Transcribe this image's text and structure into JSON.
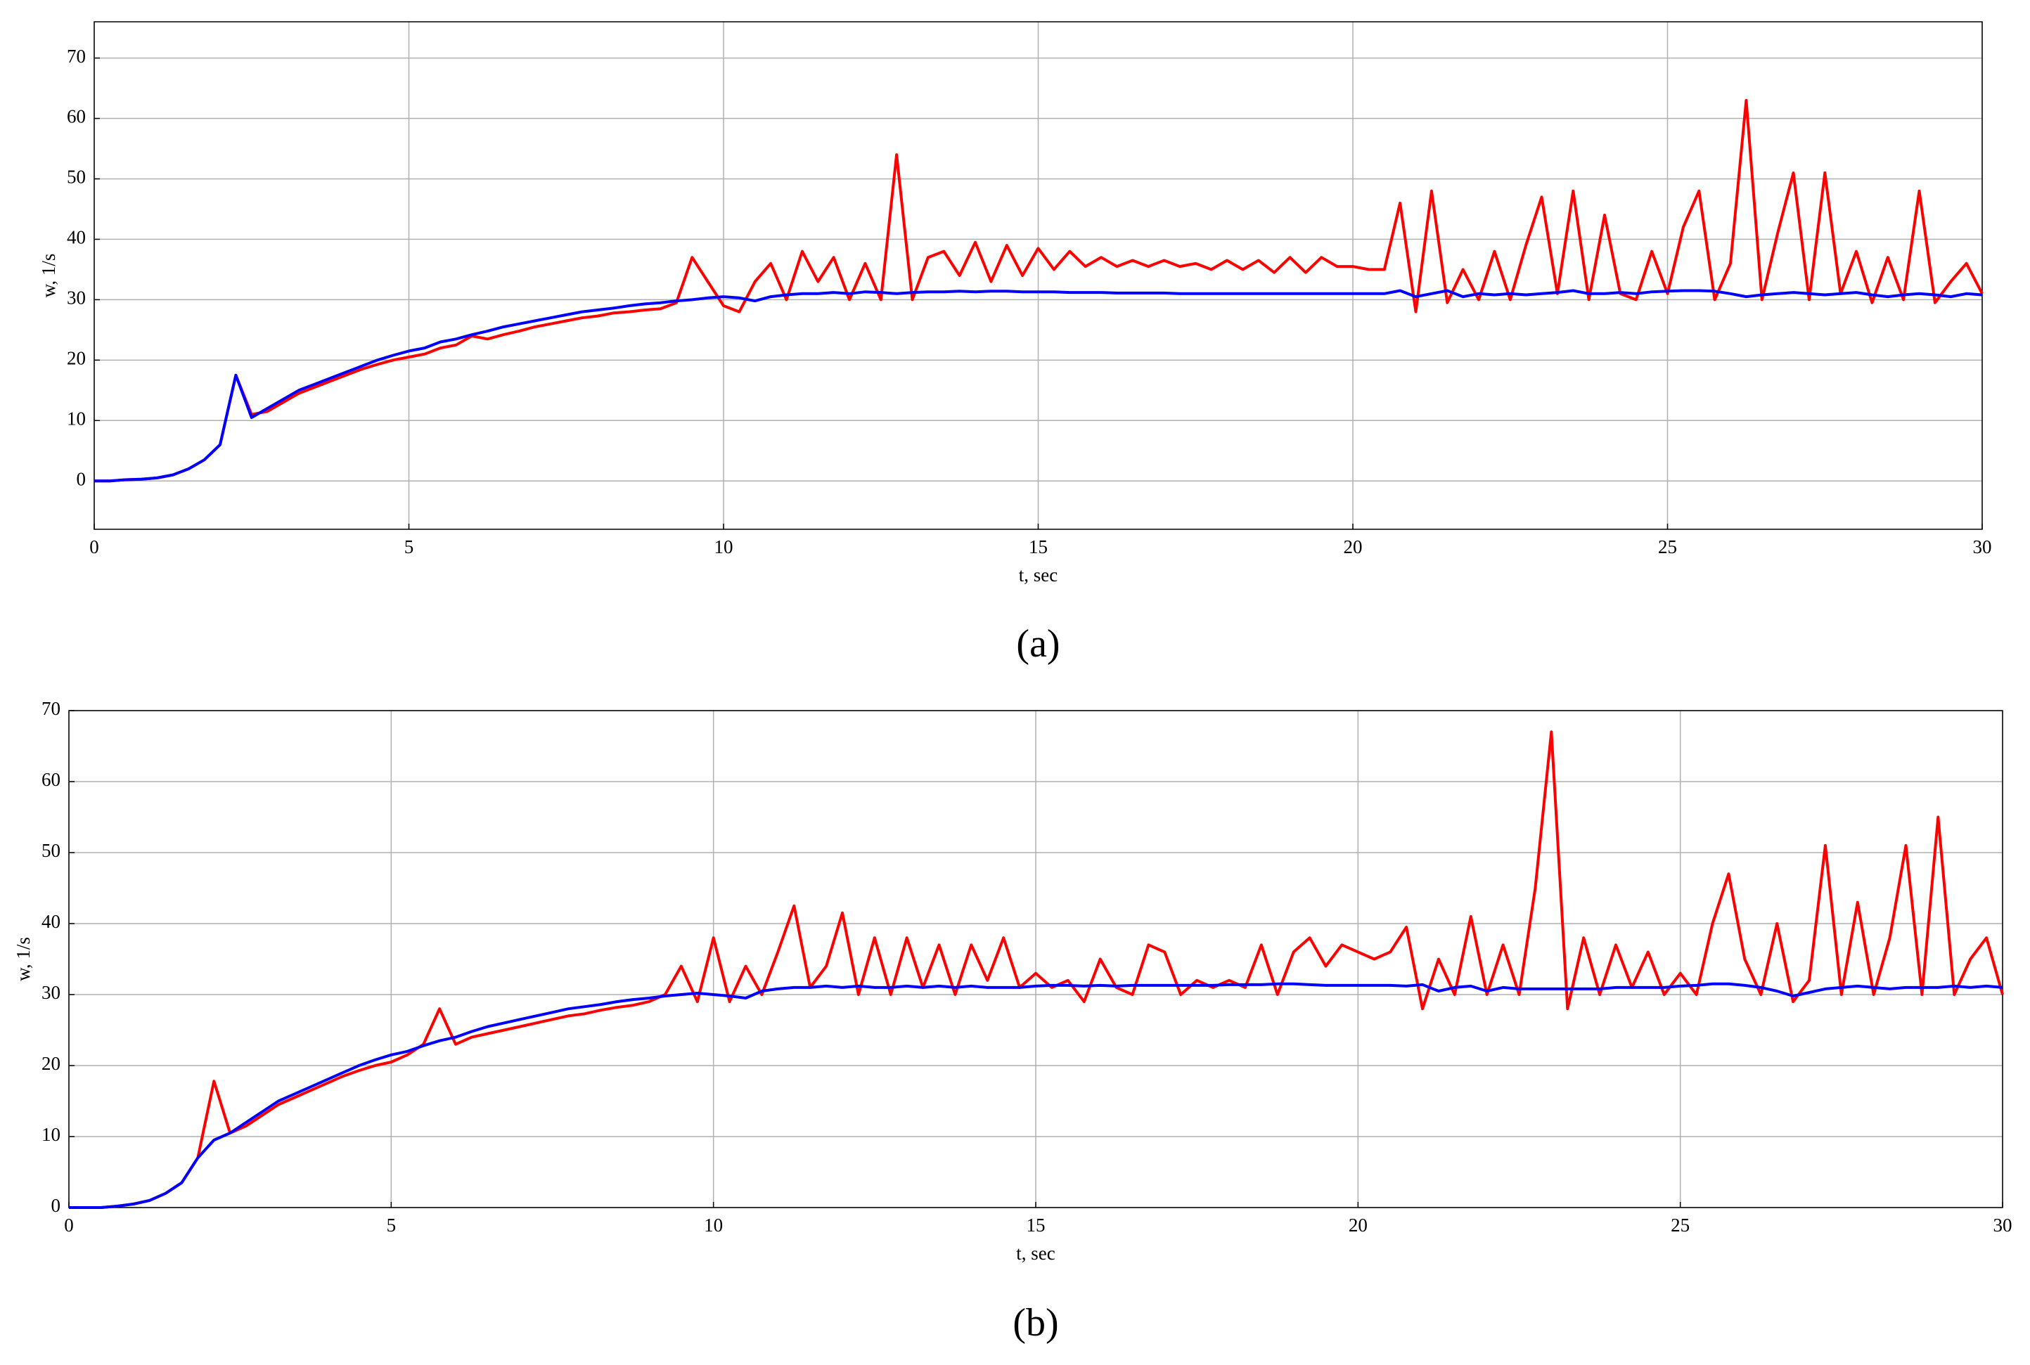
{
  "chart_data": [
    {
      "type": "line",
      "caption": "(a)",
      "xlabel": "t, sec",
      "ylabel": "w, 1/s",
      "xlim": [
        0,
        30
      ],
      "xticks": [
        0,
        5,
        10,
        15,
        20,
        25,
        30
      ],
      "ylim": [
        -8,
        76
      ],
      "yticks": [
        0,
        10,
        20,
        30,
        40,
        50,
        60,
        70
      ],
      "grid": true,
      "x": [
        0,
        0.25,
        0.5,
        0.75,
        1,
        1.25,
        1.5,
        1.75,
        2,
        2.25,
        2.5,
        2.75,
        3,
        3.25,
        3.5,
        3.75,
        4,
        4.25,
        4.5,
        4.75,
        5,
        5.25,
        5.5,
        5.75,
        6,
        6.25,
        6.5,
        6.75,
        7,
        7.25,
        7.5,
        7.75,
        8,
        8.25,
        8.5,
        8.75,
        9,
        9.25,
        9.5,
        9.75,
        10,
        10.25,
        10.5,
        10.75,
        11,
        11.25,
        11.5,
        11.75,
        12,
        12.25,
        12.5,
        12.75,
        13,
        13.25,
        13.5,
        13.75,
        14,
        14.25,
        14.5,
        14.75,
        15,
        15.25,
        15.5,
        15.75,
        16,
        16.25,
        16.5,
        16.75,
        17,
        17.25,
        17.5,
        17.75,
        18,
        18.25,
        18.5,
        18.75,
        19,
        19.25,
        19.5,
        19.75,
        20,
        20.25,
        20.5,
        20.75,
        21,
        21.25,
        21.5,
        21.75,
        22,
        22.25,
        22.5,
        22.75,
        23,
        23.25,
        23.5,
        23.75,
        24,
        24.25,
        24.5,
        24.75,
        25,
        25.25,
        25.5,
        25.75,
        26,
        26.25,
        26.5,
        26.75,
        27,
        27.25,
        27.5,
        27.75,
        28,
        28.25,
        28.5,
        28.75,
        29,
        29.25,
        29.5,
        29.75,
        30
      ],
      "series": [
        {
          "color": "#ff0000",
          "values": [
            0,
            0,
            0.2,
            0.3,
            0.5,
            1,
            2,
            3.5,
            6,
            17.5,
            11,
            11.5,
            13,
            14.5,
            15.5,
            16.5,
            17.5,
            18.5,
            19.3,
            20,
            20.5,
            21,
            22,
            22.5,
            24,
            23.5,
            24.2,
            24.8,
            25.5,
            26,
            26.5,
            27,
            27.3,
            27.8,
            28,
            28.3,
            28.5,
            29.5,
            37,
            33,
            29,
            28,
            33,
            36,
            30,
            38,
            33,
            37,
            30,
            36,
            30,
            54,
            30,
            37,
            38,
            34,
            39.5,
            33,
            39,
            34,
            38.5,
            35,
            38,
            35.5,
            37,
            35.5,
            36.5,
            35.5,
            36.5,
            35.5,
            36,
            35,
            36.5,
            35,
            36.5,
            34.5,
            37,
            34.5,
            37,
            35.5,
            35.5,
            35,
            35,
            46,
            28,
            48,
            29.5,
            35,
            30,
            38,
            30,
            39,
            47,
            31,
            48,
            30,
            44,
            31,
            30,
            38,
            31,
            42,
            48,
            30,
            36,
            63,
            30,
            41,
            51,
            30,
            51,
            31,
            38,
            29.5,
            37,
            30,
            48,
            29.5,
            33,
            36,
            31
          ]
        },
        {
          "color": "#0000ff",
          "values": [
            0,
            0,
            0.2,
            0.3,
            0.5,
            1,
            2,
            3.5,
            6,
            17.5,
            10.5,
            12,
            13.5,
            15,
            16,
            17,
            18,
            19,
            20,
            20.8,
            21.5,
            22,
            23,
            23.5,
            24.2,
            24.8,
            25.5,
            26,
            26.5,
            27,
            27.5,
            28,
            28.3,
            28.6,
            29,
            29.3,
            29.5,
            29.8,
            30,
            30.3,
            30.5,
            30.3,
            29.8,
            30.5,
            30.8,
            31,
            31,
            31.2,
            31,
            31.3,
            31.2,
            31,
            31.2,
            31.3,
            31.3,
            31.4,
            31.3,
            31.4,
            31.4,
            31.3,
            31.3,
            31.3,
            31.2,
            31.2,
            31.2,
            31.1,
            31.1,
            31.1,
            31.1,
            31,
            31,
            31,
            31,
            31,
            31,
            31,
            31,
            31,
            31,
            31,
            31,
            31,
            31,
            31.5,
            30.5,
            31,
            31.5,
            30.5,
            31,
            30.8,
            31,
            30.8,
            31,
            31.2,
            31.5,
            31,
            31,
            31.2,
            31,
            31.3,
            31.4,
            31.5,
            31.5,
            31.4,
            31,
            30.5,
            30.8,
            31,
            31.2,
            31,
            30.8,
            31,
            31.2,
            30.8,
            30.5,
            30.8,
            31,
            30.8,
            30.5,
            31,
            30.8
          ]
        }
      ]
    },
    {
      "type": "line",
      "caption": "(b)",
      "xlabel": "t, sec",
      "ylabel": "w, 1/s",
      "xlim": [
        0,
        30
      ],
      "xticks": [
        0,
        5,
        10,
        15,
        20,
        25,
        30
      ],
      "ylim": [
        0,
        70
      ],
      "yticks": [
        0,
        10,
        20,
        30,
        40,
        50,
        60,
        70
      ],
      "grid": true,
      "x": [
        0,
        0.25,
        0.5,
        0.75,
        1,
        1.25,
        1.5,
        1.75,
        2,
        2.25,
        2.5,
        2.75,
        3,
        3.25,
        3.5,
        3.75,
        4,
        4.25,
        4.5,
        4.75,
        5,
        5.25,
        5.5,
        5.75,
        6,
        6.25,
        6.5,
        6.75,
        7,
        7.25,
        7.5,
        7.75,
        8,
        8.25,
        8.5,
        8.75,
        9,
        9.25,
        9.5,
        9.75,
        10,
        10.25,
        10.5,
        10.75,
        11,
        11.25,
        11.5,
        11.75,
        12,
        12.25,
        12.5,
        12.75,
        13,
        13.25,
        13.5,
        13.75,
        14,
        14.25,
        14.5,
        14.75,
        15,
        15.25,
        15.5,
        15.75,
        16,
        16.25,
        16.5,
        16.75,
        17,
        17.25,
        17.5,
        17.75,
        18,
        18.25,
        18.5,
        18.75,
        19,
        19.25,
        19.5,
        19.75,
        20,
        20.25,
        20.5,
        20.75,
        21,
        21.25,
        21.5,
        21.75,
        22,
        22.25,
        22.5,
        22.75,
        23,
        23.25,
        23.5,
        23.75,
        24,
        24.25,
        24.5,
        24.75,
        25,
        25.25,
        25.5,
        25.75,
        26,
        26.25,
        26.5,
        26.75,
        27,
        27.25,
        27.5,
        27.75,
        28,
        28.25,
        28.5,
        28.75,
        29,
        29.25,
        29.5,
        29.75,
        30
      ],
      "series": [
        {
          "color": "#ff0000",
          "values": [
            0,
            0,
            0,
            0.2,
            0.5,
            1,
            2,
            3.5,
            7,
            17.8,
            10.5,
            11.5,
            13,
            14.5,
            15.5,
            16.5,
            17.5,
            18.5,
            19.3,
            20,
            20.5,
            21.5,
            23,
            28,
            23,
            24,
            24.5,
            25,
            25.5,
            26,
            26.5,
            27,
            27.3,
            27.8,
            28.2,
            28.5,
            29,
            30,
            34,
            29,
            38,
            29,
            34,
            30,
            36,
            42.5,
            31,
            34,
            41.5,
            30,
            38,
            30,
            38,
            31,
            37,
            30,
            37,
            32,
            38,
            31,
            33,
            31,
            32,
            29,
            35,
            31,
            30,
            37,
            36,
            30,
            32,
            31,
            32,
            31,
            37,
            30,
            36,
            38,
            34,
            37,
            36,
            35,
            36,
            39.5,
            28,
            35,
            30,
            41,
            30,
            37,
            30,
            45,
            67,
            28,
            38,
            30,
            37,
            31,
            36,
            30,
            33,
            30,
            40,
            47,
            35,
            30,
            40,
            29,
            32,
            51,
            30,
            43,
            30,
            38,
            51,
            30,
            55,
            30,
            35,
            38,
            30
          ]
        },
        {
          "color": "#0000ff",
          "values": [
            0,
            0,
            0,
            0.2,
            0.5,
            1,
            2,
            3.5,
            7,
            9.5,
            10.5,
            12,
            13.5,
            15,
            16,
            17,
            18,
            19,
            20,
            20.8,
            21.5,
            22,
            22.8,
            23.5,
            24,
            24.8,
            25.5,
            26,
            26.5,
            27,
            27.5,
            28,
            28.3,
            28.6,
            29,
            29.3,
            29.5,
            29.8,
            30,
            30.2,
            30,
            29.8,
            29.5,
            30.5,
            30.8,
            31,
            31,
            31.2,
            31,
            31.2,
            31,
            31,
            31.2,
            31,
            31.2,
            31,
            31.2,
            31,
            31,
            31,
            31.2,
            31.3,
            31.3,
            31.2,
            31.3,
            31.2,
            31.3,
            31.3,
            31.3,
            31.3,
            31.3,
            31.3,
            31.4,
            31.4,
            31.4,
            31.5,
            31.5,
            31.4,
            31.3,
            31.3,
            31.3,
            31.3,
            31.3,
            31.2,
            31.4,
            30.5,
            31,
            31.2,
            30.5,
            31,
            30.8,
            30.8,
            30.8,
            30.8,
            30.8,
            30.8,
            31,
            31,
            31,
            31,
            31.2,
            31.3,
            31.5,
            31.5,
            31.3,
            31,
            30.5,
            29.8,
            30.3,
            30.8,
            31,
            31.2,
            31,
            30.8,
            31,
            31,
            31,
            31.2,
            31,
            31.2,
            31
          ]
        }
      ]
    }
  ]
}
